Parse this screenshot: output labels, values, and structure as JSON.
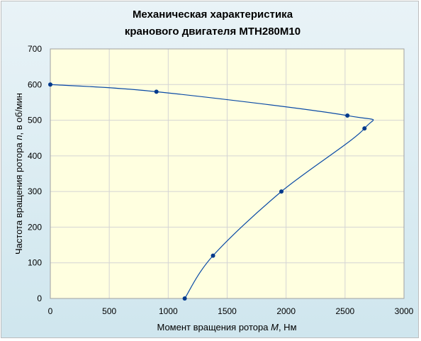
{
  "chart_data": {
    "type": "scatter",
    "title_lines": [
      "Механическая характеристика",
      "кранового  двигателя МТН280М10"
    ],
    "xlabel": {
      "prefix": "Момент вращения ротора ",
      "var": "M",
      "suffix": ", Нм"
    },
    "ylabel": {
      "prefix": "Частота вращения ротора ",
      "var": "n",
      "suffix": ", в об/мин"
    },
    "xlim": [
      0,
      3000
    ],
    "ylim": [
      0,
      700
    ],
    "x_ticks": [
      "0",
      "500",
      "1000",
      "1500",
      "2000",
      "2500",
      "3000"
    ],
    "y_ticks": [
      "0",
      "100",
      "200",
      "300",
      "400",
      "500",
      "600",
      "700"
    ],
    "grid": true,
    "series": [
      {
        "color": "#003a8c",
        "points": [
          {
            "x": 0,
            "y": 600
          },
          {
            "x": 900,
            "y": 580
          },
          {
            "x": 2520,
            "y": 513
          },
          {
            "x": 2665,
            "y": 477
          },
          {
            "x": 1960,
            "y": 300
          },
          {
            "x": 1380,
            "y": 120
          },
          {
            "x": 1140,
            "y": 0
          }
        ]
      }
    ],
    "colors": {
      "plot_bg": "#ffffe0",
      "grid": "#d4d4d4",
      "line": "#0a4aa6",
      "marker": "#003a8c"
    }
  }
}
